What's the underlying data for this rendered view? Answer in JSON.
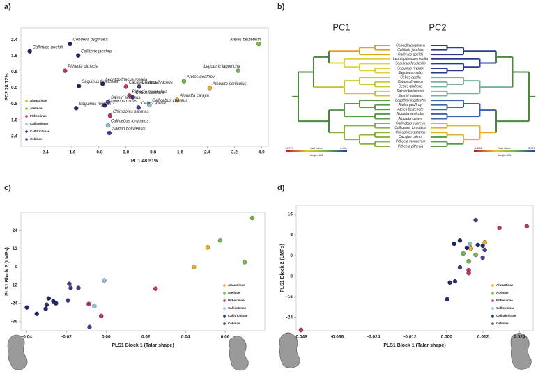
{
  "chart_data": [
    {
      "panel": "a)",
      "type": "scatter",
      "x_label": "PC1 48.51%",
      "y_label": "PC2 28.72%",
      "xlim": [
        -3.1,
        4.2
      ],
      "ylim": [
        -2.9,
        3.0
      ],
      "xticks": [
        -2.4,
        -1.6,
        -0.8,
        {
          "value": 0,
          "label": "0.0"
        },
        0.8,
        1.6,
        2.4,
        3.2,
        {
          "value": 4,
          "label": "4.0"
        }
      ],
      "yticks": [
        2.4,
        1.6,
        0.8,
        {
          "value": 0,
          "label": "0.0"
        },
        -0.8,
        -1.6,
        -2.4
      ],
      "legend": "lower left",
      "series": [
        {
          "name": "Alouattinae",
          "color": "#e8b020",
          "x": [
            2.47,
            1.51
          ],
          "values": [
            0.0,
            -0.59
          ],
          "labels": [
            "Alouatta seniculus",
            "Alouatta caraya"
          ]
        },
        {
          "name": "Atelinae",
          "color": "#7ab648",
          "x": [
            3.92,
            3.31,
            1.71
          ],
          "values": [
            2.2,
            0.86,
            0.34
          ],
          "labels": [
            "Ateles belzebuth",
            "Lagothrix lagotricha",
            "Ateles geoffroyi"
          ]
        },
        {
          "name": "Pitheciinae",
          "color": "#c2306a",
          "x": [
            -1.8,
            0.0,
            0.1,
            -0.47
          ],
          "values": [
            0.86,
            0.07,
            -0.38,
            -1.38
          ],
          "labels": [
            "Pithecia pithecia",
            "Cacajao calvus",
            "Pithecia monachus",
            "Chiropotes satanas"
          ]
        },
        {
          "name": "Callicebinae",
          "color": "#8cc4d4",
          "x": [
            0.69,
            -0.53
          ],
          "values": [
            -0.83,
            -1.86
          ],
          "labels": [
            "Callicebus cupreus",
            "Callicebus torquatus"
          ]
        },
        {
          "name": "Callitrichinae",
          "color": "#23286e",
          "x": [
            -1.65,
            -2.84,
            -1.41,
            -0.69,
            -1.39,
            -0.63,
            -1.47
          ],
          "values": [
            2.2,
            1.83,
            1.62,
            0.21,
            0.1,
            -0.86,
            -1.0
          ],
          "labels": [
            "Cebuella pygmaea",
            "Callimico goeldii",
            "Callithrix jacchus",
            "Leontopithecus rosalia",
            "Saguinus fuscicollis",
            "Saguinus midas",
            "Saguinus mystax"
          ]
        },
        {
          "name": "Cebinae",
          "color": "#4a3a8a",
          "x": [
            0.39,
            0.2,
            -0.53,
            0.37,
            -0.49
          ],
          "values": [
            0.07,
            -0.45,
            -0.69,
            -0.97,
            -2.24
          ],
          "labels": [
            "Cebus olivaceus",
            "Cebus albifrons",
            "Saimiri sciureus",
            "Cebus apella",
            "Saimiri boliviensis"
          ]
        }
      ]
    },
    {
      "panel": "b)",
      "type": "tree",
      "headers": [
        "PC1",
        "PC2"
      ],
      "leaves": [
        "Cebuella pygmaea",
        "Callithrix jacchus",
        "Callimico goeldii",
        "Leontopithecus rosalia",
        "Saguinus fuscicollis",
        "Saguinus mystax",
        "Saguinus midas",
        "Cebus apella",
        "Cebus olivaceus",
        "Cebus albifrons",
        "Saimiri boliviensis",
        "Saimiri sciureus",
        "Lagothrix lagotricha",
        "Ateles geoffroyi",
        "Ateles belzebuth",
        "Alouatta seniculus",
        "Alouatta caraya",
        "Callicebus cupreus",
        "Callicebus torquatus",
        "Chiropotes satanas",
        "Cacajao calvus",
        "Pithecia monachus",
        "Pithecia pithecia"
      ],
      "scales": [
        {
          "min": "-2.770",
          "label": "trait value",
          "max": "0.411",
          "length": "length=0.5"
        },
        {
          "min": "-1.865",
          "label": "trait value",
          "max": "2.025",
          "length": "length=0.5"
        }
      ]
    },
    {
      "panel": "c)",
      "type": "scatter",
      "x_label": "PLS1 Block 1 (Talar shape)",
      "y_label": "PLS1 Block 2 (LMPs)",
      "xlim": [
        -0.043,
        0.08
      ],
      "ylim": [
        -42,
        36
      ],
      "xticks": [
        -0.04,
        -0.02,
        {
          "value": 0,
          "label": "0.00"
        },
        0.02,
        0.04,
        0.06
      ],
      "yticks": [
        24,
        12,
        0,
        -12,
        -24,
        -36
      ],
      "legend": "lower right",
      "series": [
        {
          "name": "Alouattinae",
          "color": "#e8b020",
          "x": [
            0.0512,
            0.0442
          ],
          "values": [
            12.9,
            0
          ]
        },
        {
          "name": "Atelinae",
          "color": "#7ab648",
          "x": [
            0.0737,
            0.0575,
            0.0698
          ],
          "values": [
            32.3,
            17.5,
            3.2
          ]
        },
        {
          "name": "Pitheciinae",
          "color": "#c2306a",
          "x": [
            0.0249,
            -0.0088,
            -0.0025
          ],
          "values": [
            -14.3,
            -24.4,
            -32.3
          ]
        },
        {
          "name": "Callicebinae",
          "color": "#8cc4d4",
          "x": [
            -0.001,
            -0.006
          ],
          "values": [
            -8.8,
            -25.8
          ]
        },
        {
          "name": "Callitrichinae",
          "color": "#23286e",
          "x": [
            -0.04,
            -0.035,
            -0.0305,
            -0.03,
            -0.029,
            -0.0267,
            -0.0253
          ],
          "values": [
            -26.7,
            -30.9,
            -27.6,
            -24.9,
            -20.7,
            -22.6,
            -24
          ]
        },
        {
          "name": "Cebinae",
          "color": "#4a3a8a",
          "x": [
            -0.0186,
            -0.0179,
            -0.014,
            -0.0193,
            -0.0084
          ],
          "values": [
            -11.1,
            -13.8,
            -13.8,
            -22.1,
            -39.6
          ]
        }
      ]
    },
    {
      "panel": "d)",
      "type": "scatter",
      "x_label": "PLS1 Block 1 (Talar shape)",
      "y_label": "PLS1 Block 2 (LMPs)",
      "xlim": [
        -0.0495,
        0.0285
      ],
      "ylim": [
        -29.2,
        19.5
      ],
      "xticks": [
        -0.048,
        -0.036,
        -0.024,
        -0.012,
        {
          "value": 0,
          "label": "0.000"
        },
        0.012,
        0.024
      ],
      "yticks": [
        16,
        8,
        0,
        -8,
        -16,
        -24
      ],
      "legend": "lower right",
      "series": [
        {
          "name": "Alouattinae",
          "color": "#e8b020",
          "x": [
            0.008,
            0.0126
          ],
          "values": [
            2.7,
            5.1
          ]
        },
        {
          "name": "Atelinae",
          "color": "#7ab648",
          "x": [
            0.0055,
            0.0096,
            0.0073
          ],
          "values": [
            0.8,
            0.3,
            -2.2
          ]
        },
        {
          "name": "Pitheciinae",
          "color": "#c2306a",
          "x": [
            -0.0479,
            0.0174,
            0.0264,
            0.0073,
            0.0073
          ],
          "values": [
            -28.9,
            10.8,
            11.4,
            -5.7,
            -6.8
          ]
        },
        {
          "name": "Callicebinae",
          "color": "#8cc4d4",
          "x": [
            0.0078
          ],
          "values": [
            4.6
          ]
        },
        {
          "name": "Callitrichinae",
          "color": "#23286e",
          "x": [
            0.0025,
            0.0044,
            0.0067,
            0.0103,
            0.0119,
            0.0028,
            0.0011,
            0.0002
          ],
          "values": [
            4.6,
            5.9,
            3.0,
            4.1,
            3.8,
            -10.0,
            -10.5,
            -17.0
          ]
        },
        {
          "name": "Cebinae",
          "color": "#4a3a8a",
          "x": [
            0.0096,
            0.0126,
            0.0119,
            0.0044
          ],
          "values": [
            13.8,
            2.2,
            -0.8,
            -4.6
          ]
        }
      ]
    }
  ]
}
